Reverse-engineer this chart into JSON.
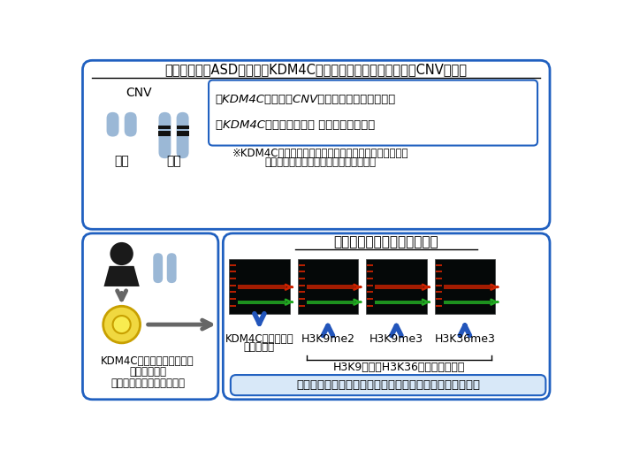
{
  "title": "統合失調症とASDにおけるKDM4C遠伝子領域のコピー数変異（CNV）解析",
  "bullet1": "・KDM4C遠伝子のCNVは両疾患それぞれと関連",
  "bullet2": "・KDM4C遠伝子の欠失は 統合失調症と関連",
  "note_line1": "※KDM4C遠伝子はヒストンメチル化修飾の調節を介して",
  "note_line2": "神経の発達に重要な役割を果たしている",
  "cnv_label": "CNV",
  "deletion_label": "欠失",
  "duplication_label": "重複",
  "bottom_title": "ヒストンメチル化修飾の解析",
  "left_caption_line1": "KDM4C遠伝子の欠失をもつ",
  "left_caption_line2": "患者さんから",
  "left_caption_line3": "リンパ芽球様細胞株を樹立",
  "kdm4c_label_line1": "KDM4Cタンパク質",
  "kdm4c_label_line2": "発現の低下",
  "h3k9me2_label": "H3K9me2",
  "h3k9me3_label": "H3K9me3",
  "h3k36me3_label": "H3K36me3",
  "h3k_caption": "H3K9およびH3K36のメチル化佗進",
  "bottom_caption": "患者さんから樹立した細胞でヒストンメチル化修飾の変化",
  "box_border_color": "#2060C0",
  "bg_color": "#FFFFFF",
  "chromosome_color": "#9BB8D6",
  "black_band_color": "#111111",
  "person_color": "#1A1A1A",
  "cell_yellow": "#F0D840",
  "cell_dark": "#C8A000",
  "cell_inner_color": "#F8EC50",
  "arrow_gray": "#666666",
  "arrow_blue": "#2255BB",
  "blot_bg": "#050808",
  "red_band": "#CC2200",
  "green_band": "#22AA22",
  "light_blue_fill": "#D8E8F8"
}
